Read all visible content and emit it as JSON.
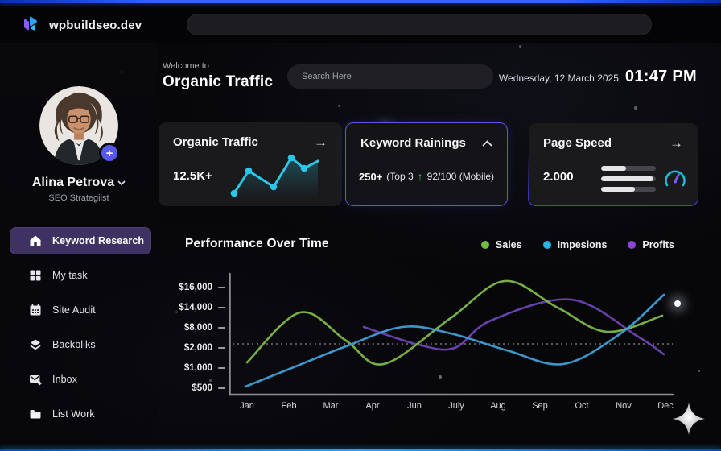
{
  "brand": {
    "name": "wpbuildseo.dev"
  },
  "topbar": {
    "search_value": ""
  },
  "profile": {
    "name": "Alina Petrova",
    "role": "SEO Strategiist"
  },
  "nav": {
    "items": [
      {
        "label": "Keyword Research",
        "icon": "home",
        "active": true
      },
      {
        "label": "My task",
        "icon": "grid",
        "active": false
      },
      {
        "label": "Site Audit",
        "icon": "calendar",
        "active": false
      },
      {
        "label": "Backbliks",
        "icon": "layers",
        "active": false
      },
      {
        "label": "Inbox",
        "icon": "mail-plus",
        "active": false
      },
      {
        "label": "List Work",
        "icon": "folder",
        "active": false
      }
    ]
  },
  "header": {
    "welcome": "Welcome to",
    "title": "Organic Traffic",
    "search_placeholder": "Search Here",
    "date": "Wednesday, 12 March 2025",
    "time": "01:47 PM"
  },
  "icons": {
    "arrow_right": "→",
    "up_arrow": "↑"
  },
  "cards": {
    "organic_traffic": {
      "title": "Organic Traffic",
      "value": "12.5K+",
      "spark": {
        "color": "#2bc7e8",
        "fill_top": "rgba(43,199,232,0.28)",
        "points": [
          [
            13,
            55
          ],
          [
            31,
            27
          ],
          [
            62,
            47
          ],
          [
            84,
            11
          ],
          [
            100,
            24
          ],
          [
            117,
            15
          ]
        ],
        "dot_count": 5
      }
    },
    "keyword_ranking": {
      "title": "Keyword Rainings",
      "rank": "250+",
      "rank_note": "(Top 3",
      "score": "92/100 (Mobile)",
      "border_color": "#5a57e8",
      "arrow_color": "#27c46d"
    },
    "page_speed": {
      "title": "Page Speed",
      "value": "2.000",
      "bars": [
        45,
        95,
        62
      ],
      "gauge": {
        "arc": "#1bb9da",
        "needle": "#7a5cff"
      }
    }
  },
  "chart_data": {
    "type": "line",
    "title": "Performance Over Time",
    "categories": [
      "Jan",
      "Feb",
      "Mar",
      "Apr",
      "Jun",
      "July",
      "Aug",
      "Sep",
      "Oct",
      "Nov",
      "Dec"
    ],
    "y_tick_labels": [
      "$16,000",
      "$14,000",
      "$8,000",
      "$2,000",
      "$1,000",
      "$500"
    ],
    "guideline_at": "$2,000",
    "legend_position": "top-right",
    "grid": "dotted-guideline-only",
    "series": [
      {
        "name": "Sales",
        "color": "#6fbe3e",
        "line_color": "#7db84a",
        "values": [
          1250,
          11600,
          7800,
          1450,
          4500,
          11600,
          16500,
          15800,
          13800,
          7500,
          11600
        ],
        "render_points": [
          [
            23,
            114
          ],
          [
            89,
            52
          ],
          [
            146,
            87
          ],
          [
            193,
            116
          ],
          [
            276,
            59
          ],
          [
            343,
            13
          ],
          [
            409,
            46
          ],
          [
            470,
            76
          ],
          [
            539,
            56
          ]
        ]
      },
      {
        "name": "Impesions",
        "color": "#29b3e6",
        "line_color": "#3f9fd8",
        "values": [
          500,
          950,
          1800,
          6500,
          8000,
          6700,
          2000,
          1400,
          1250,
          6300,
          15200
        ],
        "values_note": "non-linear y scale per y_tick_labels",
        "render_points": [
          [
            21,
            144
          ],
          [
            76,
            122
          ],
          [
            146,
            94
          ],
          [
            216,
            70
          ],
          [
            276,
            78
          ],
          [
            346,
            99
          ],
          [
            416,
            116
          ],
          [
            486,
            79
          ],
          [
            541,
            30
          ]
        ]
      },
      {
        "name": "Profits",
        "color": "#8a45d6",
        "line_color": "#6d44b4",
        "values": [
          null,
          null,
          null,
          8200,
          2600,
          2000,
          9800,
          14500,
          15000,
          8300,
          1750
        ],
        "render_points": [
          [
            168,
            70
          ],
          [
            236,
            92
          ],
          [
            281,
            96
          ],
          [
            326,
            62
          ],
          [
            426,
            36
          ],
          [
            509,
            82
          ],
          [
            541,
            104
          ]
        ]
      }
    ]
  }
}
